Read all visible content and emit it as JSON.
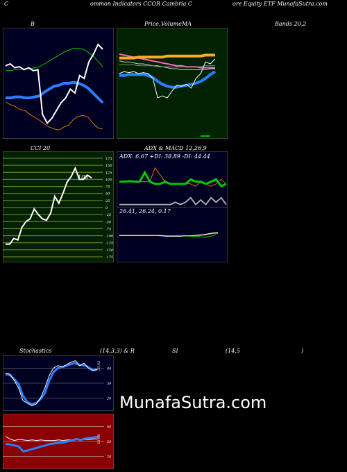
{
  "header": {
    "left": "C",
    "center": "ommon  Indicators CCOR Cambria  C",
    "right": "ore  Equity ETF MunafaSutra.com"
  },
  "titles": {
    "bands": "B",
    "price_a": "Price,",
    "price_b": "Volume",
    "price_c": "MA",
    "bands_right": "Bands 20,2",
    "cci": "CCI 20",
    "adx_macd": "ADX  & MACD 12,26,9",
    "stoch": "Stochastics",
    "stoch_params": "(14,3,3) & R",
    "si": "SI",
    "rsi_params": "(14,5",
    "rsi_close": ")"
  },
  "adx_text": "ADX: 6.67  +DI: 38.89 -DI: 44.44",
  "macd_text": "26.41,  26.24,  0.17",
  "cci_value": "103",
  "watermark": "MunafaSutra.com",
  "colors": {
    "price_panel_bg": "#002200",
    "rsi_panel_bg": "#8b0000",
    "navy_bg": "#000022",
    "blue": "#2a7fff",
    "green": "#00cc00",
    "orange": "#e07000"
  },
  "chart_data": [
    {
      "type": "line",
      "name": "Bollinger Bands",
      "series": [
        {
          "name": "",
          "values": [
            0.28,
            0.33,
            0.31,
            0.36,
            0.3,
            0.34,
            0.38,
            0.31,
            0.85,
            0.94,
            0.9,
            0.63,
            0.73,
            0.55,
            0.6,
            0.52,
            0.34,
            0.45,
            0.1,
            0.18,
            0.12
          ]
        },
        {
          "name": "",
          "values": [
            0.63,
            0.63,
            0.64,
            0.64,
            0.65,
            0.65,
            0.66,
            0.67,
            0.7,
            0.73,
            0.76,
            0.79,
            0.82,
            0.84,
            0.86,
            0.86,
            0.85,
            0.82,
            0.78,
            0.73,
            0.67
          ]
        },
        {
          "name": "",
          "values": [
            0.35,
            0.35,
            0.36,
            0.36,
            0.35,
            0.35,
            0.36,
            0.37,
            0.41,
            0.44,
            0.47,
            0.48,
            0.5,
            0.5,
            0.51,
            0.5,
            0.48,
            0.45,
            0.4,
            0.35,
            0.3
          ]
        },
        {
          "name": "",
          "values": [
            0.31,
            0.28,
            0.26,
            0.23,
            0.22,
            0.18,
            0.15,
            0.12,
            0.08,
            0.05,
            0.03,
            0.02,
            0.05,
            0.07,
            0.13,
            0.16,
            0.17,
            0.15,
            0.09,
            0.04,
            0.03
          ]
        },
        {
          "name": "",
          "values": [
            0.8,
            0.82,
            0.82,
            0.82,
            0.81,
            0.82,
            0.83,
            0.91,
            0.97,
            0.99,
            0.99,
            0.97,
            0.97,
            0.98,
            0.97,
            0.97,
            0.97,
            0.99,
            0.98,
            0.95,
            0.87
          ]
        }
      ]
    },
    {
      "type": "line",
      "name": "Price, Volume, MA",
      "series": [
        {
          "name": "",
          "values": [
            0.6,
            0.62,
            0.61,
            0.62,
            0.6,
            0.61,
            0.6,
            0.55,
            0.35,
            0.37,
            0.35,
            0.42,
            0.48,
            0.47,
            0.49,
            0.45,
            0.55,
            0.6,
            0.72,
            0.7,
            0.75
          ]
        },
        {
          "name": "",
          "values": [
            0.58,
            0.58,
            0.59,
            0.59,
            0.59,
            0.59,
            0.58,
            0.56,
            0.52,
            0.49,
            0.47,
            0.46,
            0.46,
            0.47,
            0.48,
            0.49,
            0.5,
            0.52,
            0.55,
            0.59,
            0.62
          ]
        },
        {
          "name": "",
          "values": [
            0.8,
            0.79,
            0.78,
            0.77,
            0.76,
            0.75,
            0.74,
            0.73,
            0.72,
            0.71,
            0.7,
            0.69,
            0.68,
            0.68,
            0.67,
            0.67,
            0.67,
            0.66,
            0.66,
            0.66,
            0.66
          ]
        },
        {
          "name": "",
          "values": [
            0.76,
            0.76,
            0.76,
            0.76,
            0.77,
            0.77,
            0.77,
            0.77,
            0.77,
            0.77,
            0.78,
            0.78,
            0.78,
            0.78,
            0.78,
            0.78,
            0.78,
            0.78,
            0.79,
            0.79,
            0.79
          ]
        },
        {
          "name": "",
          "values": [
            0.73,
            0.72,
            0.72,
            0.71,
            0.7,
            0.7,
            0.69,
            0.68,
            0.68,
            0.67,
            0.66,
            0.65,
            0.65,
            0.64,
            0.64,
            0.64,
            0.64,
            0.64,
            0.64,
            0.65,
            0.65
          ]
        },
        {
          "name": "",
          "values": [
            0.69,
            0.69,
            0.69,
            0.69,
            0.68,
            0.68,
            0.68,
            0.68,
            0.67,
            0.67,
            0.67,
            0.67,
            0.67,
            0.67,
            0.67,
            0.67,
            0.67,
            0.67,
            0.68,
            0.68,
            0.68
          ]
        }
      ],
      "volume": [
        0,
        0,
        0,
        0,
        0,
        0,
        0,
        0,
        0,
        0,
        0,
        0,
        0,
        0,
        0,
        0,
        0,
        1,
        1,
        0,
        0
      ]
    },
    {
      "type": "line",
      "name": "CCI 20",
      "ylim": [
        -175,
        175
      ],
      "ticks": [
        "175",
        "150",
        "125",
        "100",
        "75",
        "50",
        "25",
        "0",
        "-25",
        "-50",
        "-75",
        "-100",
        "-125",
        "-150",
        "-175"
      ],
      "values": [
        -130,
        -130,
        -110,
        -115,
        -70,
        -50,
        -40,
        -5,
        -25,
        -40,
        -45,
        -20,
        40,
        15,
        50,
        90,
        110,
        140,
        100,
        100,
        115,
        105
      ]
    },
    {
      "type": "line",
      "name": "ADX",
      "series": [
        {
          "name": "+DI",
          "values": [
            0.55,
            0.55,
            0.56,
            0.55,
            0.55,
            0.75,
            0.55,
            0.5,
            0.5,
            0.55,
            0.5,
            0.5,
            0.5,
            0.5,
            0.6,
            0.55,
            0.55,
            0.5,
            0.55,
            0.6,
            0.45,
            0.5
          ]
        },
        {
          "name": "-DI",
          "values": [
            0.55,
            0.55,
            0.56,
            0.55,
            0.55,
            0.55,
            0.55,
            0.85,
            0.7,
            0.55,
            0.5,
            0.5,
            0.5,
            0.52,
            0.5,
            0.45,
            0.55,
            0.5,
            0.45,
            0.5,
            0.6,
            0.5
          ]
        },
        {
          "name": "ADX",
          "values": [
            0.05,
            0.05,
            0.05,
            0.05,
            0.05,
            0.05,
            0.05,
            0.05,
            0.05,
            0.05,
            0.05,
            0.1,
            0.05,
            0.1,
            0.2,
            0.05,
            0.15,
            0.05,
            0.2,
            0.1,
            0.2,
            0.05
          ]
        }
      ]
    },
    {
      "type": "line",
      "name": "MACD",
      "series": [
        {
          "name": "",
          "values": [
            0.48,
            0.48,
            0.48,
            0.48,
            0.48,
            0.48,
            0.48,
            0.48,
            0.48,
            0.47,
            0.46,
            0.46,
            0.46,
            0.46,
            0.47,
            0.47,
            0.48,
            0.49,
            0.5,
            0.52,
            0.54,
            0.55
          ]
        },
        {
          "name": "",
          "values": [
            0.48,
            0.48,
            0.48,
            0.48,
            0.48,
            0.48,
            0.48,
            0.48,
            0.48,
            0.48,
            0.47,
            0.47,
            0.47,
            0.47,
            0.47,
            0.47,
            0.48,
            0.48,
            0.49,
            0.51,
            0.53,
            0.54
          ]
        }
      ]
    },
    {
      "type": "line",
      "name": "Stochastics",
      "ylim": [
        0,
        100
      ],
      "ticks": [
        "80",
        "50",
        "20"
      ],
      "value_label": "53.42",
      "series": [
        {
          "name": "",
          "values": [
            70,
            68,
            55,
            40,
            15,
            10,
            5,
            8,
            20,
            40,
            65,
            80,
            85,
            83,
            87,
            92,
            95,
            85,
            90,
            80,
            75,
            78
          ]
        },
        {
          "name": "",
          "values": [
            68,
            66,
            58,
            48,
            25,
            12,
            8,
            10,
            18,
            30,
            55,
            72,
            80,
            82,
            85,
            88,
            90,
            86,
            86,
            82,
            76,
            77
          ]
        }
      ]
    },
    {
      "type": "line",
      "name": "RSI",
      "ylim": [
        0,
        100
      ],
      "ticks": [
        "80",
        "50",
        "20"
      ],
      "value_label": "53.98",
      "series": [
        {
          "name": "",
          "values": [
            45,
            44,
            42,
            40,
            30,
            32,
            35,
            37,
            40,
            42,
            45,
            46,
            47,
            48,
            50,
            52,
            55,
            53,
            56,
            57,
            58,
            60
          ]
        },
        {
          "name": "",
          "values": [
            60,
            55,
            52,
            54,
            53,
            52,
            53,
            52,
            53,
            52,
            52,
            52,
            53,
            52,
            53,
            53,
            54,
            53,
            54,
            54,
            55,
            55
          ]
        }
      ]
    }
  ]
}
